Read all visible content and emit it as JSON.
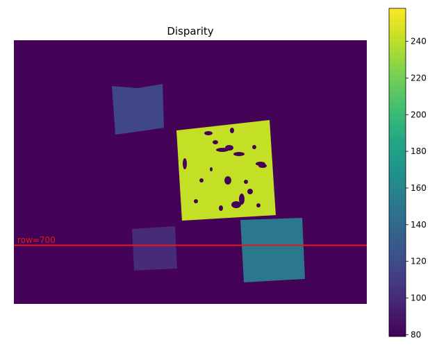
{
  "chart_data": {
    "type": "heatmap",
    "title": "Disparity",
    "xlabel": "",
    "ylabel": "",
    "axes_visible": false,
    "colormap": "viridis",
    "background_value": 80,
    "colorbar": {
      "range": [
        79,
        258
      ],
      "ticks": [
        80,
        100,
        120,
        140,
        160,
        180,
        200,
        220,
        240
      ],
      "placement": "right"
    },
    "regions": [
      {
        "name": "region-top-left",
        "value": 117
      },
      {
        "name": "region-center-square",
        "value": 242
      },
      {
        "name": "region-bottom-left",
        "value": 100
      },
      {
        "name": "region-bottom-right",
        "value": 150
      }
    ],
    "annotations": [
      {
        "type": "hline",
        "row": 700,
        "label": "row=700",
        "color": "#e41a1c"
      }
    ]
  }
}
